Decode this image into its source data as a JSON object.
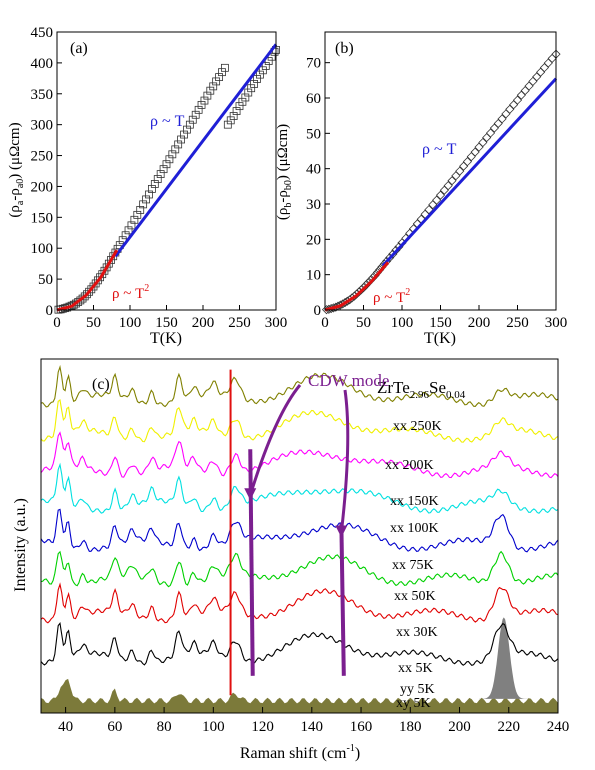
{
  "colors": {
    "axis": "#000000",
    "fit_linear": "#1f1fd6",
    "fit_quadratic": "#e01010",
    "marker_a": "#333333",
    "marker_b": "#333333",
    "cdw_arrow": "#7b1f8f",
    "vline": "#e01010",
    "fill_xx5k": "#808080",
    "fill_yy_xy": "#7c7a3a"
  },
  "chart_data": [
    {
      "type": "scatter",
      "panel_label": "(a)",
      "xlabel": "T(K)",
      "ylabel": "(ρa-ρa0) (μΩcm)",
      "ylabel_parts": {
        "main": "(ρ",
        "sub1": "a",
        "mid": "-ρ",
        "sub2": "a0",
        "tail": ") (μΩcm)"
      },
      "xlim": [
        0,
        300
      ],
      "ylim": [
        0,
        450
      ],
      "xticks": [
        0,
        50,
        100,
        150,
        200,
        250,
        300
      ],
      "yticks": [
        0,
        50,
        100,
        150,
        200,
        250,
        300,
        350,
        400,
        450
      ],
      "marker": "open-square",
      "points": [
        [
          2,
          0.5
        ],
        [
          5,
          1
        ],
        [
          8,
          2
        ],
        [
          11,
          3
        ],
        [
          14,
          4
        ],
        [
          17,
          5.5
        ],
        [
          20,
          7
        ],
        [
          23,
          8.5
        ],
        [
          26,
          10.5
        ],
        [
          29,
          13
        ],
        [
          32,
          15.5
        ],
        [
          35,
          18.5
        ],
        [
          38,
          22
        ],
        [
          41,
          25.5
        ],
        [
          44,
          29.5
        ],
        [
          47,
          33.5
        ],
        [
          50,
          38
        ],
        [
          53,
          43
        ],
        [
          56,
          48
        ],
        [
          59,
          53
        ],
        [
          62,
          58
        ],
        [
          65,
          63.5
        ],
        [
          68,
          69
        ],
        [
          71,
          75
        ],
        [
          74,
          81
        ],
        [
          77,
          87
        ],
        [
          80,
          93
        ],
        [
          83,
          99
        ],
        [
          86,
          105
        ],
        [
          90,
          113
        ],
        [
          94,
          121
        ],
        [
          98,
          129
        ],
        [
          102,
          137
        ],
        [
          106,
          146
        ],
        [
          110,
          154
        ],
        [
          114,
          162
        ],
        [
          118,
          171
        ],
        [
          122,
          179
        ],
        [
          126,
          187
        ],
        [
          130,
          196
        ],
        [
          134,
          204
        ],
        [
          138,
          212
        ],
        [
          142,
          220
        ],
        [
          146,
          228
        ],
        [
          150,
          236
        ],
        [
          154,
          244
        ],
        [
          158,
          252
        ],
        [
          162,
          260
        ],
        [
          166,
          268
        ],
        [
          170,
          276
        ],
        [
          174,
          284
        ],
        [
          178,
          292
        ],
        [
          182,
          300
        ],
        [
          186,
          308
        ],
        [
          190,
          316
        ],
        [
          194,
          324
        ],
        [
          198,
          332
        ],
        [
          202,
          339
        ],
        [
          206,
          347
        ],
        [
          210,
          355
        ],
        [
          214,
          362
        ],
        [
          218,
          370
        ],
        [
          222,
          377
        ],
        [
          226,
          385
        ],
        [
          230,
          392
        ],
        [
          234,
          300
        ],
        [
          238,
          307
        ],
        [
          242,
          314
        ],
        [
          246,
          322
        ],
        [
          250,
          330
        ],
        [
          254,
          337
        ],
        [
          258,
          344
        ],
        [
          262,
          352
        ],
        [
          266,
          359
        ],
        [
          270,
          366
        ],
        [
          274,
          374
        ],
        [
          278,
          381
        ],
        [
          282,
          388
        ],
        [
          286,
          395
        ],
        [
          290,
          403
        ],
        [
          294,
          410
        ],
        [
          298,
          418
        ],
        [
          300,
          421
        ]
      ],
      "fits": [
        {
          "label": "ρ ~ T",
          "label_parts": {
            "base": "ρ ~ T",
            "sup": ""
          },
          "form": "linear",
          "x_range": [
            80,
            300
          ],
          "x": [
            80,
            300
          ],
          "y": [
            87,
            430
          ]
        },
        {
          "label": "ρ ~ T2",
          "label_parts": {
            "base": "ρ ~ T",
            "sup": "2"
          },
          "form": "quadratic",
          "x_range": [
            0,
            82
          ],
          "x": [
            0,
            20,
            40,
            60,
            82
          ],
          "y": [
            0,
            6,
            24,
            53,
            97
          ]
        }
      ]
    },
    {
      "type": "scatter",
      "panel_label": "(b)",
      "xlabel": "T(K)",
      "ylabel": "(ρb-ρb0) (μΩcm)",
      "ylabel_parts": {
        "main": "(ρ",
        "sub1": "b",
        "mid": "-ρ",
        "sub2": "b0",
        "tail": ") (μΩcm)"
      },
      "xlim": [
        0,
        300
      ],
      "ylim": [
        0,
        75
      ],
      "xticks": [
        0,
        50,
        100,
        150,
        200,
        250,
        300
      ],
      "yticks": [
        0,
        10,
        20,
        30,
        40,
        50,
        60,
        70
      ],
      "marker": "open-diamond",
      "points": [
        [
          2,
          0.1
        ],
        [
          5,
          0.2
        ],
        [
          8,
          0.4
        ],
        [
          11,
          0.6
        ],
        [
          14,
          0.8
        ],
        [
          17,
          1.1
        ],
        [
          20,
          1.4
        ],
        [
          23,
          1.7
        ],
        [
          26,
          2.1
        ],
        [
          29,
          2.5
        ],
        [
          32,
          2.9
        ],
        [
          35,
          3.4
        ],
        [
          38,
          3.9
        ],
        [
          41,
          4.5
        ],
        [
          44,
          5.1
        ],
        [
          47,
          5.7
        ],
        [
          50,
          6.3
        ],
        [
          53,
          7
        ],
        [
          56,
          7.7
        ],
        [
          59,
          8.4
        ],
        [
          62,
          9.1
        ],
        [
          65,
          9.8
        ],
        [
          68,
          10.6
        ],
        [
          71,
          11.4
        ],
        [
          74,
          12.2
        ],
        [
          77,
          13
        ],
        [
          80,
          13.8
        ],
        [
          84,
          14.8
        ],
        [
          88,
          15.8
        ],
        [
          92,
          16.9
        ],
        [
          96,
          17.9
        ],
        [
          100,
          19
        ],
        [
          105,
          20.3
        ],
        [
          110,
          21.7
        ],
        [
          115,
          23
        ],
        [
          120,
          24.4
        ],
        [
          125,
          25.7
        ],
        [
          130,
          27.1
        ],
        [
          135,
          28.4
        ],
        [
          140,
          29.8
        ],
        [
          145,
          31.1
        ],
        [
          150,
          32.5
        ],
        [
          155,
          33.9
        ],
        [
          160,
          35.2
        ],
        [
          165,
          36.6
        ],
        [
          170,
          38
        ],
        [
          175,
          39.3
        ],
        [
          180,
          40.7
        ],
        [
          185,
          42
        ],
        [
          190,
          43.4
        ],
        [
          195,
          44.7
        ],
        [
          200,
          46.1
        ],
        [
          205,
          47.4
        ],
        [
          210,
          48.8
        ],
        [
          215,
          50.1
        ],
        [
          220,
          51.5
        ],
        [
          225,
          52.8
        ],
        [
          230,
          54.1
        ],
        [
          235,
          55.5
        ],
        [
          240,
          56.8
        ],
        [
          245,
          58.1
        ],
        [
          250,
          59.4
        ],
        [
          255,
          60.8
        ],
        [
          260,
          62.1
        ],
        [
          265,
          63.4
        ],
        [
          270,
          64.7
        ],
        [
          275,
          66
        ],
        [
          280,
          67.3
        ],
        [
          285,
          68.6
        ],
        [
          290,
          69.9
        ],
        [
          295,
          71.2
        ],
        [
          300,
          72.4
        ]
      ],
      "fits": [
        {
          "label": "ρ ~ T",
          "label_parts": {
            "base": "ρ ~ T",
            "sup": ""
          },
          "form": "linear",
          "x_range": [
            75,
            300
          ],
          "x": [
            75,
            300
          ],
          "y": [
            12.5,
            65.5
          ]
        },
        {
          "label": "ρ ~ T2",
          "label_parts": {
            "base": "ρ ~ T",
            "sup": "2"
          },
          "form": "quadratic",
          "x_range": [
            0,
            82
          ],
          "x": [
            0,
            20,
            40,
            60,
            82
          ],
          "y": [
            0,
            1.2,
            3.9,
            8,
            13.5
          ]
        }
      ]
    },
    {
      "type": "line",
      "panel_label": "(c)",
      "title": "ZrTe2.96Se0.04",
      "title_parts": {
        "a": "ZrTe",
        "sub1": "2.96",
        "b": "Se",
        "sub2": "0.04"
      },
      "xlabel": "Raman shift (cm-1)",
      "xlabel_parts": {
        "main": "Raman shift (cm",
        "sup": "-1",
        "tail": ")"
      },
      "ylabel": "Intensity (a.u.)",
      "xlim": [
        30,
        240
      ],
      "ylim": [
        0,
        10
      ],
      "y_scale": "arbitrary (stacked, offset)",
      "xticks": [
        40,
        60,
        80,
        100,
        120,
        140,
        160,
        180,
        200,
        220,
        240
      ],
      "annotation": "CDW mode",
      "vline_x": 107,
      "cdw_arrow_targets": [
        {
          "x": 115,
          "series": "xx 150K"
        },
        {
          "x": 152,
          "series": "xx 75K"
        }
      ],
      "cdw_guides": [
        {
          "x": [
            115,
            116
          ],
          "series_from": "xx 150K",
          "series_to": "xx 5K"
        },
        {
          "x": [
            152,
            153
          ],
          "series_from": "xx 75K",
          "series_to": "xx 5K"
        }
      ],
      "series": [
        {
          "name": "xx 250K",
          "color": "#808000",
          "offset": 8.6
        },
        {
          "name": "xx 200K",
          "color": "#f0f000",
          "offset": 7.6
        },
        {
          "name": "xx 150K",
          "color": "#ff00ff",
          "offset": 6.6
        },
        {
          "name": "xx 100K",
          "color": "#00e0e0",
          "offset": 5.6
        },
        {
          "name": "xx 75K",
          "color": "#0000cc",
          "offset": 4.5
        },
        {
          "name": "xx 50K",
          "color": "#00d000",
          "offset": 3.5
        },
        {
          "name": "xx 30K",
          "color": "#e00000",
          "offset": 2.5
        },
        {
          "name": "xx 5K",
          "color": "#000000",
          "offset": 1.3
        },
        {
          "name": "yy 5K",
          "color": "#808080",
          "offset": 0.2
        },
        {
          "name": "xy 5K",
          "color": "#7c7a3a",
          "offset": 0.0
        }
      ]
    }
  ]
}
